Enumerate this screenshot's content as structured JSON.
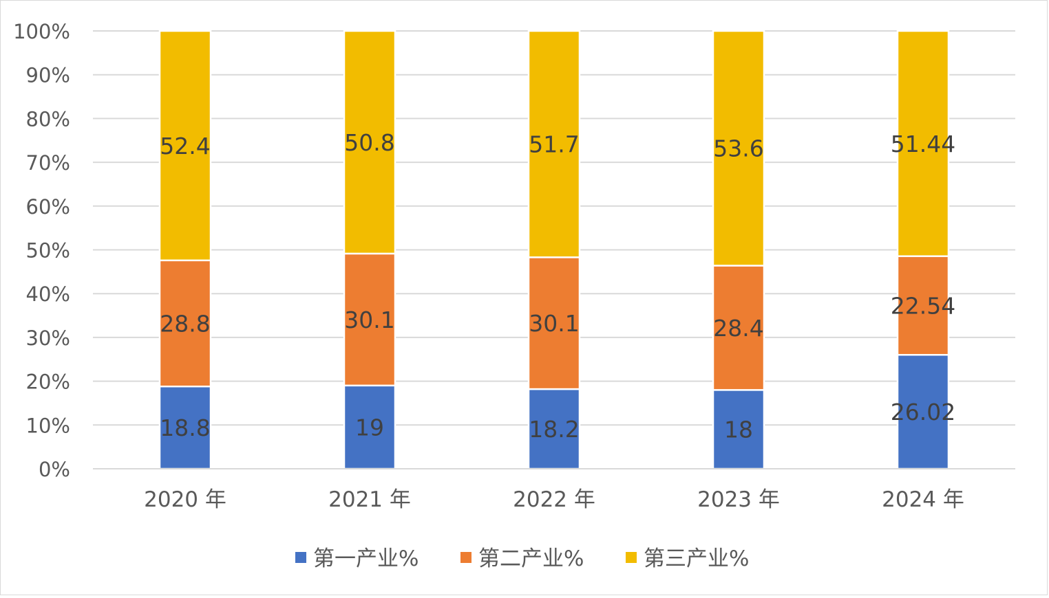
{
  "chart_data": {
    "type": "bar",
    "stacked": true,
    "normalized_percent": true,
    "categories": [
      "2020 年",
      "2021 年",
      "2022 年",
      "2023 年",
      "2024 年"
    ],
    "series": [
      {
        "name": "第一产业%",
        "values": [
          18.8,
          19,
          18.2,
          18,
          26.02
        ],
        "color": "#4472C4"
      },
      {
        "name": "第二产业%",
        "values": [
          28.8,
          30.1,
          30.1,
          28.4,
          22.54
        ],
        "color": "#ED7D31"
      },
      {
        "name": "第三产业%",
        "values": [
          52.4,
          50.8,
          51.7,
          53.6,
          51.44
        ],
        "color": "#F2BC00"
      }
    ],
    "y_ticks": [
      "0%",
      "10%",
      "20%",
      "30%",
      "40%",
      "50%",
      "60%",
      "70%",
      "80%",
      "90%",
      "100%"
    ],
    "ylim": [
      0,
      100
    ],
    "grid": true,
    "legend_position": "bottom",
    "title": "",
    "xlabel": "",
    "ylabel": ""
  }
}
